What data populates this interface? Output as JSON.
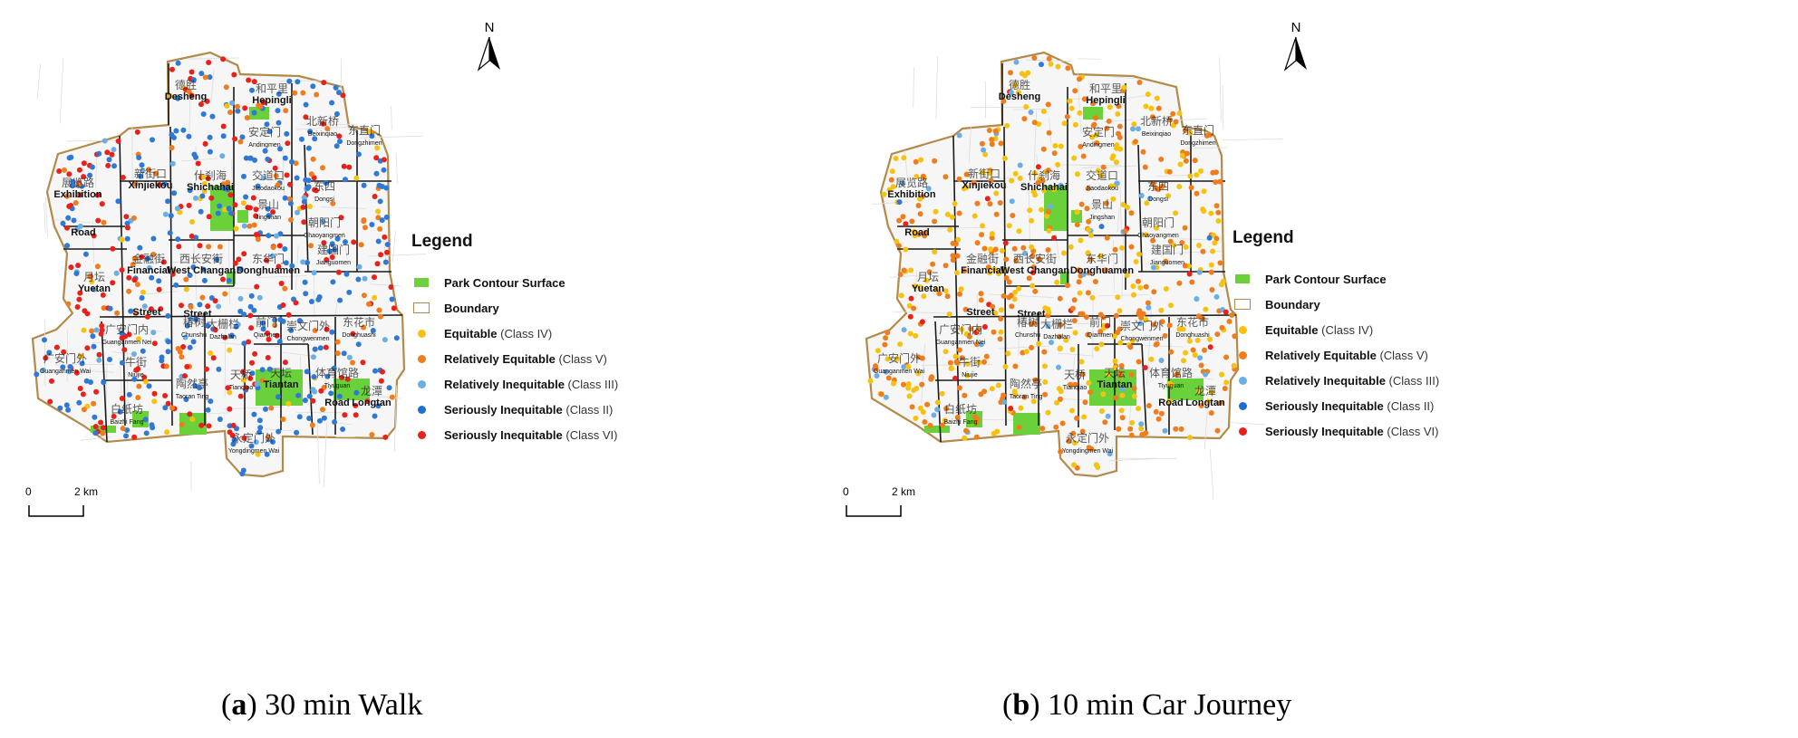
{
  "panel_a": {
    "caption_letter": "a",
    "caption_text": "30 min Walk",
    "dot_mix": [
      [
        "#2e79d6",
        0.42
      ],
      [
        "#e8211b",
        0.3
      ],
      [
        "#f07d1d",
        0.14
      ],
      [
        "#6aaee6",
        0.1
      ],
      [
        "#f7c20f",
        0.04
      ]
    ]
  },
  "panel_b": {
    "caption_letter": "b",
    "caption_text": "10 min Car Journey",
    "dot_mix": [
      [
        "#f07d1d",
        0.5
      ],
      [
        "#f7c20f",
        0.4
      ],
      [
        "#6aaee6",
        0.06
      ],
      [
        "#e8211b",
        0.03
      ],
      [
        "#2e79d6",
        0.01
      ]
    ]
  },
  "north_label": "N",
  "scale": {
    "zero": "0",
    "dist": "2 km"
  },
  "legend": {
    "title": "Legend",
    "items": [
      {
        "label": "Park Contour Surface",
        "note": "",
        "color": "#6ad13a",
        "shape": "rect"
      },
      {
        "label": "Boundary",
        "note": "",
        "color": "#b38a4a",
        "shape": "outline"
      },
      {
        "label": "Equitable",
        "note": "(Class IV)",
        "color": "#f7c20f",
        "shape": "dot"
      },
      {
        "label": "Relatively Equitable",
        "note": "(Class V)",
        "color": "#f07d1d",
        "shape": "dot"
      },
      {
        "label": "Relatively Inequitable",
        "note": "(Class III)",
        "color": "#6aaee6",
        "shape": "dot"
      },
      {
        "label": "Seriously Inequitable",
        "note": "(Class II)",
        "color": "#1d6fd8",
        "shape": "dot"
      },
      {
        "label": "Seriously Inequitable",
        "note": "(Class VI)",
        "color": "#e8211b",
        "shape": "dot"
      }
    ]
  },
  "districts": [
    {
      "cn": "德胜",
      "en": "Desheng"
    },
    {
      "cn": "和平里",
      "en": "Hepingli"
    },
    {
      "cn": "安定门",
      "en": "Andingmen"
    },
    {
      "cn": "北新桥",
      "en": "Beixinqiao"
    },
    {
      "cn": "东直门",
      "en": "Dongzhimen"
    },
    {
      "cn": "展览路",
      "en": "Exhibition"
    },
    {
      "cn": "",
      "en": "Road"
    },
    {
      "cn": "新街口",
      "en": "Xinjiekou"
    },
    {
      "cn": "什刹海",
      "en": "Shichahai"
    },
    {
      "cn": "交道口",
      "en": "Jiaodaokou"
    },
    {
      "cn": "景山",
      "en": "Jingshan"
    },
    {
      "cn": "东四",
      "en": "Dongsi"
    },
    {
      "cn": "朝阳门",
      "en": "Chaoyangmen"
    },
    {
      "cn": "金融街",
      "en": "Financial"
    },
    {
      "cn": "",
      "en": "Street"
    },
    {
      "cn": "西长安街",
      "en": "West Changan"
    },
    {
      "cn": "",
      "en": "Street"
    },
    {
      "cn": "东华门",
      "en": "Donghuamen"
    },
    {
      "cn": "建国门",
      "en": "Jianguomen"
    },
    {
      "cn": "月坛",
      "en": "Yuetan"
    },
    {
      "cn": "广安门内",
      "en": "Guanganmen Nei"
    },
    {
      "cn": "椿树",
      "en": "Chunshu"
    },
    {
      "cn": "大栅栏",
      "en": "Dazhalan"
    },
    {
      "cn": "前门",
      "en": "Qianmen"
    },
    {
      "cn": "崇文门外",
      "en": "Chongwenmen"
    },
    {
      "cn": "东花市",
      "en": "Donghuashi"
    },
    {
      "cn": "广安门外",
      "en": "Guanganmen Wai"
    },
    {
      "cn": "牛街",
      "en": "Niujie"
    },
    {
      "cn": "陶然亭",
      "en": "Taoran Ting"
    },
    {
      "cn": "天桥",
      "en": "Tianqiao"
    },
    {
      "cn": "天坛",
      "en": "Tiantan"
    },
    {
      "cn": "体育馆路",
      "en": "Tiyuguan"
    },
    {
      "cn": "",
      "en": "Road"
    },
    {
      "cn": "龙潭",
      "en": "Longtan"
    },
    {
      "cn": "白纸坊",
      "en": "Baizhi Fang"
    },
    {
      "cn": "永定门外",
      "en": "Yongdingmen Wai"
    }
  ]
}
